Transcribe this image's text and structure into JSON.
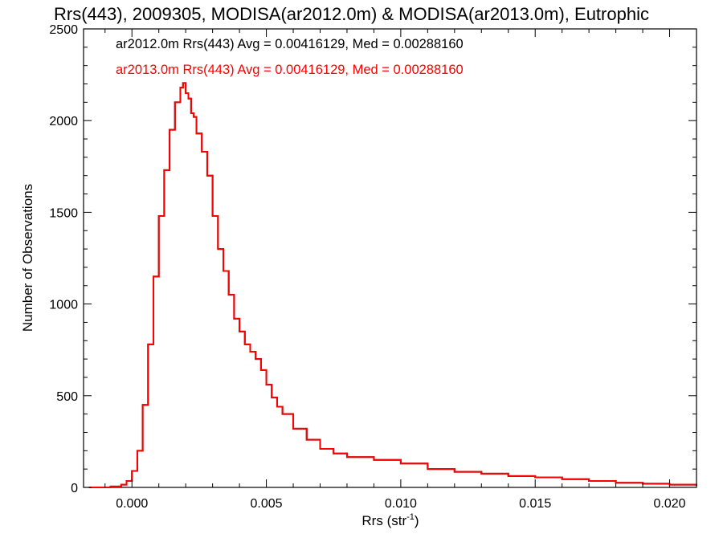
{
  "chart_data": {
    "type": "histogram-step",
    "title": "Rrs(443), 2009305, MODISA(ar2012.0m) & MODISA(ar2013.0m), Eutrophic",
    "xlabel": "Rrs (str",
    "xlabel_sup": "-1",
    "xlabel_close": ")",
    "ylabel": "Number of Observations",
    "xlim": [
      -0.0018,
      0.021
    ],
    "ylim": [
      0,
      2500
    ],
    "xticks": [
      0.0,
      0.005,
      0.01,
      0.015,
      0.02
    ],
    "xticklabels": [
      "0.000",
      "0.005",
      "0.010",
      "0.015",
      "0.020"
    ],
    "yticks": [
      0,
      500,
      1000,
      1500,
      2000,
      2500
    ],
    "yticklabels": [
      "0",
      "500",
      "1000",
      "1500",
      "2000",
      "2500"
    ],
    "grid": false,
    "annotations": [
      {
        "text": "ar2012.0m Rrs(443) Avg = 0.00416129, Med = 0.00288160",
        "color": "#000000"
      },
      {
        "text": "ar2013.0m Rrs(443) Avg = 0.00416129, Med = 0.00288160",
        "color": "#ff0000"
      }
    ],
    "series": [
      {
        "color": "#000000",
        "x": [
          -0.0016,
          -0.0008,
          -0.0004,
          -0.0002,
          0.0,
          0.0002,
          0.0004,
          0.0006,
          0.0008,
          0.001,
          0.0012,
          0.0014,
          0.0016,
          0.0018,
          0.0019,
          0.002,
          0.0021,
          0.0022,
          0.0023,
          0.0024,
          0.0026,
          0.0028,
          0.003,
          0.0032,
          0.0034,
          0.0036,
          0.0038,
          0.004,
          0.0042,
          0.0044,
          0.0046,
          0.0048,
          0.005,
          0.0052,
          0.0054,
          0.0056,
          0.006,
          0.0065,
          0.007,
          0.0075,
          0.008,
          0.009,
          0.01,
          0.011,
          0.012,
          0.013,
          0.014,
          0.015,
          0.016,
          0.017,
          0.018,
          0.019,
          0.02,
          0.021
        ],
        "y": [
          0,
          5,
          15,
          35,
          90,
          200,
          450,
          780,
          1150,
          1480,
          1730,
          1950,
          2100,
          2180,
          2205,
          2150,
          2120,
          2040,
          2020,
          1930,
          1830,
          1700,
          1480,
          1300,
          1180,
          1050,
          920,
          850,
          780,
          740,
          700,
          640,
          560,
          490,
          440,
          400,
          320,
          260,
          210,
          185,
          165,
          150,
          130,
          100,
          85,
          75,
          62,
          55,
          45,
          35,
          25,
          20,
          15,
          10
        ]
      },
      {
        "color": "#ff0000",
        "x": [
          -0.0016,
          -0.0008,
          -0.0004,
          -0.0002,
          0.0,
          0.0002,
          0.0004,
          0.0006,
          0.0008,
          0.001,
          0.0012,
          0.0014,
          0.0016,
          0.0018,
          0.0019,
          0.002,
          0.0021,
          0.0022,
          0.0023,
          0.0024,
          0.0026,
          0.0028,
          0.003,
          0.0032,
          0.0034,
          0.0036,
          0.0038,
          0.004,
          0.0042,
          0.0044,
          0.0046,
          0.0048,
          0.005,
          0.0052,
          0.0054,
          0.0056,
          0.006,
          0.0065,
          0.007,
          0.0075,
          0.008,
          0.009,
          0.01,
          0.011,
          0.012,
          0.013,
          0.014,
          0.015,
          0.016,
          0.017,
          0.018,
          0.019,
          0.02,
          0.021
        ],
        "y": [
          0,
          5,
          15,
          35,
          90,
          200,
          450,
          780,
          1150,
          1480,
          1730,
          1950,
          2100,
          2180,
          2205,
          2150,
          2120,
          2040,
          2020,
          1930,
          1830,
          1700,
          1480,
          1300,
          1180,
          1050,
          920,
          850,
          780,
          740,
          700,
          640,
          560,
          490,
          440,
          400,
          320,
          260,
          210,
          185,
          165,
          150,
          130,
          100,
          85,
          75,
          62,
          55,
          45,
          35,
          25,
          20,
          15,
          10
        ]
      }
    ]
  }
}
